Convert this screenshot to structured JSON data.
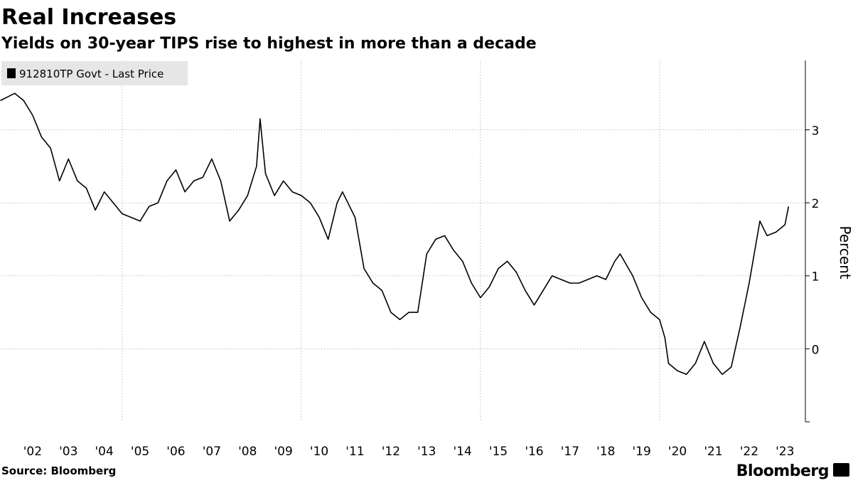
{
  "chart_data": {
    "type": "line",
    "title": "Real Increases",
    "subtitle": "Yields on 30-year TIPS rise to highest in more than a decade",
    "ylabel": "Percent",
    "source": "Source: Bloomberg",
    "brand": "Bloomberg",
    "xlim": [
      2001.59,
      2024.07
    ],
    "ylim": [
      -1,
      3.95
    ],
    "yticks": [
      0,
      1,
      2,
      3
    ],
    "xticks": [
      {
        "value": 2002.5,
        "label": "'02"
      },
      {
        "value": 2003.5,
        "label": "'03"
      },
      {
        "value": 2004.5,
        "label": "'04"
      },
      {
        "value": 2005.5,
        "label": "'05"
      },
      {
        "value": 2006.5,
        "label": "'06"
      },
      {
        "value": 2007.5,
        "label": "'07"
      },
      {
        "value": 2008.5,
        "label": "'08"
      },
      {
        "value": 2009.5,
        "label": "'09"
      },
      {
        "value": 2010.5,
        "label": "'10"
      },
      {
        "value": 2011.5,
        "label": "'11"
      },
      {
        "value": 2012.5,
        "label": "'12"
      },
      {
        "value": 2013.5,
        "label": "'13"
      },
      {
        "value": 2014.5,
        "label": "'14"
      },
      {
        "value": 2015.5,
        "label": "'15"
      },
      {
        "value": 2016.5,
        "label": "'16"
      },
      {
        "value": 2017.5,
        "label": "'17"
      },
      {
        "value": 2018.5,
        "label": "'18"
      },
      {
        "value": 2019.5,
        "label": "'19"
      },
      {
        "value": 2020.5,
        "label": "'20"
      },
      {
        "value": 2021.5,
        "label": "'21"
      },
      {
        "value": 2022.5,
        "label": "'22"
      },
      {
        "value": 2023.5,
        "label": "'23"
      }
    ],
    "xgrid": [
      2005,
      2010,
      2015,
      2020
    ],
    "grid": true,
    "series": [
      {
        "name": "912810TP Govt - Last Price",
        "color": "#000000",
        "x": [
          2001.6,
          2001.8,
          2002.0,
          2002.25,
          2002.5,
          2002.75,
          2003.0,
          2003.25,
          2003.5,
          2003.75,
          2004.0,
          2004.25,
          2004.5,
          2004.75,
          2005.0,
          2005.25,
          2005.5,
          2005.75,
          2006.0,
          2006.25,
          2006.5,
          2006.75,
          2007.0,
          2007.25,
          2007.5,
          2007.75,
          2008.0,
          2008.25,
          2008.5,
          2008.75,
          2008.85,
          2009.0,
          2009.25,
          2009.5,
          2009.75,
          2010.0,
          2010.25,
          2010.5,
          2010.75,
          2011.0,
          2011.15,
          2011.5,
          2011.75,
          2012.0,
          2012.25,
          2012.5,
          2012.75,
          2013.0,
          2013.25,
          2013.5,
          2013.75,
          2014.0,
          2014.25,
          2014.5,
          2014.75,
          2015.0,
          2015.25,
          2015.5,
          2015.75,
          2016.0,
          2016.25,
          2016.5,
          2016.75,
          2017.0,
          2017.25,
          2017.5,
          2017.75,
          2018.0,
          2018.25,
          2018.5,
          2018.75,
          2018.9,
          2019.25,
          2019.5,
          2019.75,
          2020.0,
          2020.15,
          2020.25,
          2020.5,
          2020.75,
          2021.0,
          2021.25,
          2021.5,
          2021.75,
          2022.0,
          2022.25,
          2022.5,
          2022.8,
          2023.0,
          2023.25,
          2023.5,
          2023.6
        ],
        "values": [
          3.4,
          3.45,
          3.5,
          3.4,
          3.2,
          2.9,
          2.75,
          2.3,
          2.6,
          2.3,
          2.2,
          1.9,
          2.15,
          2.0,
          1.85,
          1.8,
          1.75,
          1.95,
          2.0,
          2.3,
          2.45,
          2.15,
          2.3,
          2.35,
          2.6,
          2.3,
          1.75,
          1.9,
          2.1,
          2.5,
          3.15,
          2.4,
          2.1,
          2.3,
          2.15,
          2.1,
          2.0,
          1.8,
          1.5,
          2.0,
          2.15,
          1.8,
          1.1,
          0.9,
          0.8,
          0.5,
          0.4,
          0.5,
          0.5,
          1.3,
          1.5,
          1.55,
          1.35,
          1.2,
          0.9,
          0.7,
          0.85,
          1.1,
          1.2,
          1.05,
          0.8,
          0.6,
          0.8,
          1.0,
          0.95,
          0.9,
          0.9,
          0.95,
          1.0,
          0.95,
          1.2,
          1.3,
          1.0,
          0.7,
          0.5,
          0.4,
          0.15,
          -0.2,
          -0.3,
          -0.35,
          -0.2,
          0.1,
          -0.2,
          -0.35,
          -0.25,
          0.3,
          0.9,
          1.75,
          1.55,
          1.6,
          1.7,
          1.95
        ]
      }
    ]
  }
}
